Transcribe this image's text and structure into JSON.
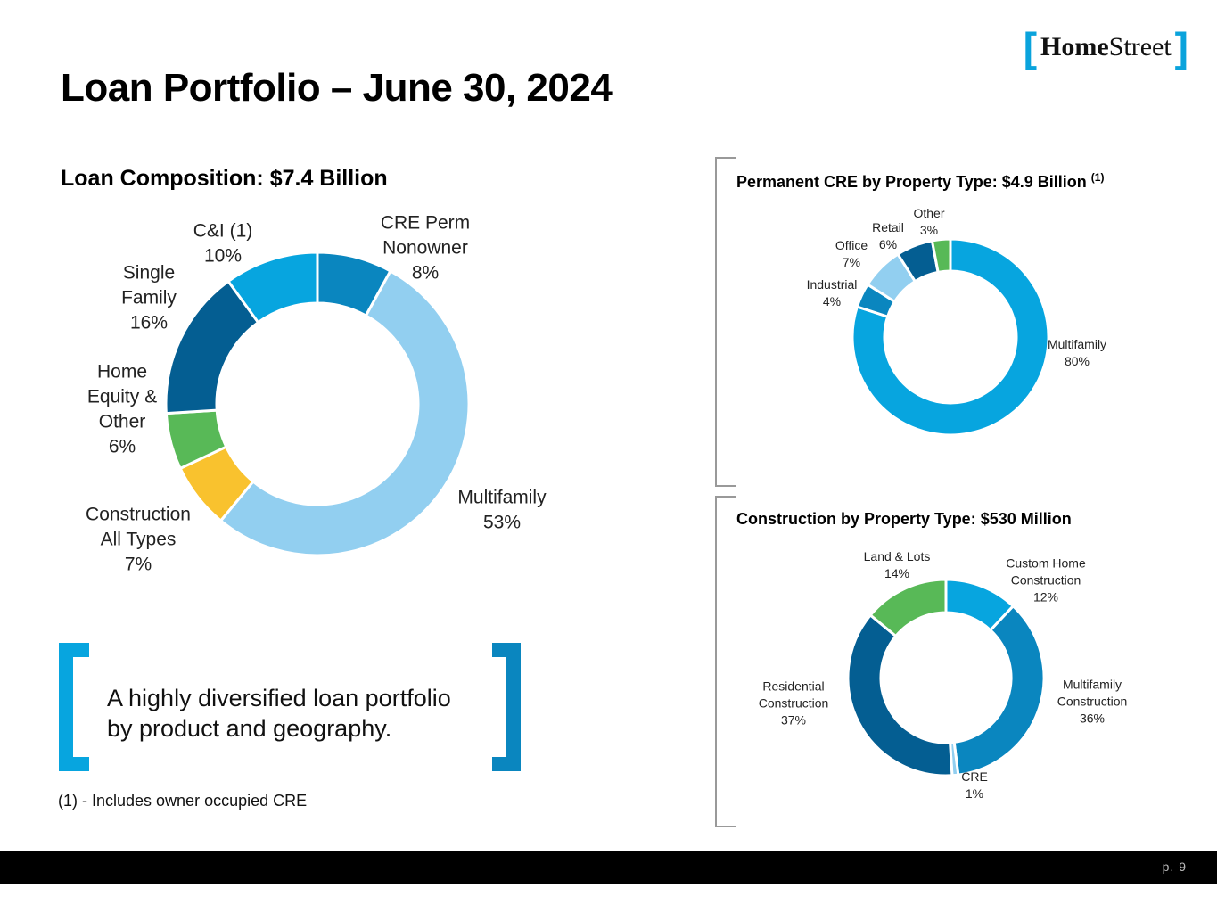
{
  "title": "Loan Portfolio – June 30, 2024",
  "logo": {
    "open": "[",
    "home": "Home",
    "street": "Street",
    "close": "]"
  },
  "quote": {
    "line1": "A highly diversified loan portfolio",
    "line2": "by product and geography."
  },
  "footnote": "(1) - Includes owner occupied CRE",
  "page_number": "p. 9",
  "chart_data": [
    {
      "id": "composition",
      "type": "pie",
      "donut": true,
      "title": "Loan Composition: $7.4 Billion",
      "slices": [
        {
          "name": "CRE Perm Nonowner",
          "label_lines": [
            "CRE Perm",
            "Nonowner",
            "8%"
          ],
          "value": 8,
          "color": "#0a86bf"
        },
        {
          "name": "Multifamily",
          "label_lines": [
            "Multifamily",
            "53%"
          ],
          "value": 53,
          "color": "#92cff0"
        },
        {
          "name": "Construction All Types",
          "label_lines": [
            "Construction",
            "All Types",
            "7%"
          ],
          "value": 7,
          "color": "#f9c22e"
        },
        {
          "name": "Home Equity & Other",
          "label_lines": [
            "Home",
            "Equity &",
            "Other",
            "6%"
          ],
          "value": 6,
          "color": "#58b957"
        },
        {
          "name": "Single Family",
          "label_lines": [
            "Single",
            "Family",
            "16%"
          ],
          "value": 16,
          "color": "#045e92"
        },
        {
          "name": "C&I (1)",
          "label_lines": [
            "C&I (1)",
            "10%"
          ],
          "value": 10,
          "color": "#07a5df"
        }
      ]
    },
    {
      "id": "permanent",
      "type": "pie",
      "donut": true,
      "title": "Permanent CRE by Property Type: $4.9 Billion",
      "title_sup": "(1)",
      "slices": [
        {
          "name": "Multifamily",
          "label_lines": [
            "Multifamily",
            "80%"
          ],
          "value": 80,
          "color": "#07a5df"
        },
        {
          "name": "Industrial",
          "label_lines": [
            "Industrial",
            "4%"
          ],
          "value": 4,
          "color": "#0a86bf"
        },
        {
          "name": "Office",
          "label_lines": [
            "Office",
            "7%"
          ],
          "value": 7,
          "color": "#92cff0"
        },
        {
          "name": "Retail",
          "label_lines": [
            "Retail",
            "6%"
          ],
          "value": 6,
          "color": "#045e92"
        },
        {
          "name": "Other",
          "label_lines": [
            "Other",
            "3%"
          ],
          "value": 3,
          "color": "#58b957"
        }
      ]
    },
    {
      "id": "construction",
      "type": "pie",
      "donut": true,
      "title": "Construction by Property Type: $530 Million",
      "slices": [
        {
          "name": "Custom Home Construction",
          "label_lines": [
            "Custom Home",
            "Construction",
            "12%"
          ],
          "value": 12,
          "color": "#07a5df"
        },
        {
          "name": "Multifamily Construction",
          "label_lines": [
            "Multifamily",
            "Construction",
            "36%"
          ],
          "value": 36,
          "color": "#0a86bf"
        },
        {
          "name": "CRE",
          "label_lines": [
            "CRE",
            "1%"
          ],
          "value": 1,
          "color": "#92cff0"
        },
        {
          "name": "Residential Construction",
          "label_lines": [
            "Residential",
            "Construction",
            "37%"
          ],
          "value": 37,
          "color": "#045e92"
        },
        {
          "name": "Land & Lots",
          "label_lines": [
            "Land & Lots",
            "14%"
          ],
          "value": 14,
          "color": "#58b957"
        }
      ]
    }
  ]
}
